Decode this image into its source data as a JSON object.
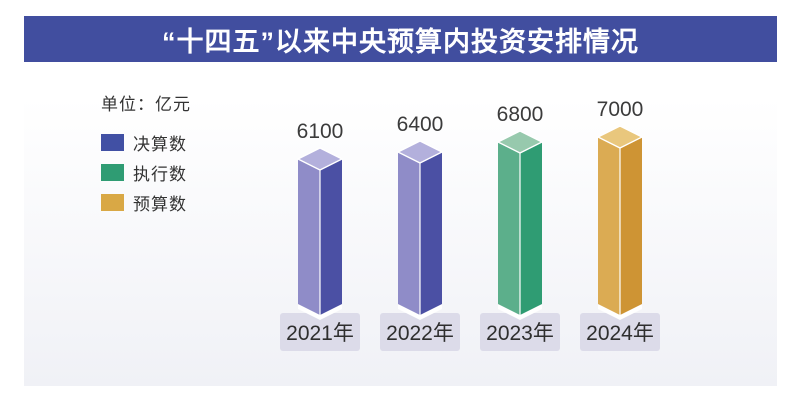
{
  "header": {
    "title": "“十四五”以来中央预算内投资安排情况"
  },
  "chart_data": {
    "type": "bar",
    "title": "“十四五”以来中央预算内投资安排情况",
    "unit_label": "单位：亿元",
    "categories": [
      "2021年",
      "2022年",
      "2023年",
      "2024年"
    ],
    "values": [
      6100,
      6400,
      6800,
      7000
    ],
    "value_labels": [
      "6100",
      "6400",
      "6800",
      "7000"
    ],
    "bar_series": [
      "决算数",
      "决算数",
      "执行数",
      "预算数"
    ],
    "legend": [
      {
        "label": "决算数",
        "color": "#4150a4"
      },
      {
        "label": "执行数",
        "color": "#2f9c73"
      },
      {
        "label": "预算数",
        "color": "#d9a845"
      }
    ],
    "palette": {
      "决算数": {
        "top": "#b3b0dc",
        "left": "#8f8cc8",
        "right": "#4b50a4"
      },
      "执行数": {
        "top": "#97c9ad",
        "left": "#5caf8b",
        "right": "#2f9c73"
      },
      "预算数": {
        "top": "#e9c77d",
        "left": "#dbab53",
        "right": "#ce9434"
      }
    },
    "colors": {
      "title_bar": "#414e9f",
      "plate": "#dcdbe9",
      "card_background_end": "#f0f1f6",
      "value_text": "#3b3b3b",
      "legend_text": "#333333"
    },
    "ylim": [
      0,
      7000
    ],
    "legend_position": "upper-left",
    "grid": false
  }
}
